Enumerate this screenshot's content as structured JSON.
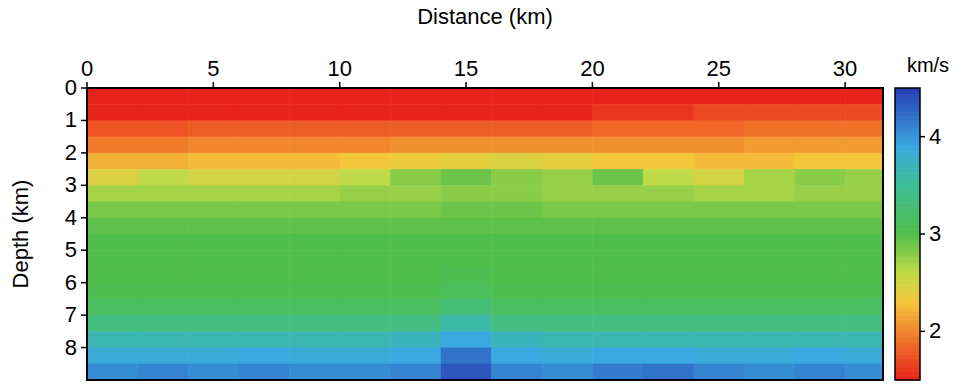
{
  "chart_data": {
    "type": "heatmap",
    "x_label": "Distance (km)",
    "y_label": "Depth (km)",
    "xlim": [
      0,
      31.5
    ],
    "ylim": [
      0,
      9
    ],
    "xticks": [
      0,
      5,
      10,
      15,
      20,
      25,
      30
    ],
    "yticks": [
      0,
      1,
      2,
      3,
      4,
      5,
      6,
      7,
      8
    ],
    "x": [
      1,
      3,
      5,
      7,
      9,
      11,
      13,
      15,
      17,
      19,
      21,
      23,
      25,
      27,
      29,
      31
    ],
    "y": [
      0.25,
      0.75,
      1.25,
      1.75,
      2.25,
      2.75,
      3.25,
      3.75,
      4.25,
      4.75,
      5.25,
      5.75,
      6.25,
      6.75,
      7.25,
      7.75,
      8.25,
      8.75
    ],
    "cells": [
      [
        1.5,
        1.5,
        1.5,
        1.5,
        1.5,
        1.5,
        1.5,
        1.5,
        1.5,
        1.5,
        1.5,
        1.5,
        1.5,
        1.5,
        1.5,
        1.5
      ],
      [
        1.5,
        1.5,
        1.5,
        1.5,
        1.5,
        1.5,
        1.5,
        1.5,
        1.5,
        1.5,
        1.6,
        1.6,
        1.7,
        1.7,
        1.7,
        1.7
      ],
      [
        1.75,
        1.75,
        1.8,
        1.8,
        1.8,
        1.8,
        1.8,
        1.8,
        1.8,
        1.8,
        1.85,
        1.85,
        1.85,
        1.9,
        1.9,
        1.9
      ],
      [
        1.95,
        1.95,
        2.0,
        2.0,
        2.0,
        2.0,
        2.05,
        2.05,
        2.05,
        2.05,
        2.05,
        2.05,
        2.05,
        2.1,
        2.1,
        2.1
      ],
      [
        2.2,
        2.2,
        2.25,
        2.25,
        2.25,
        2.3,
        2.35,
        2.4,
        2.45,
        2.4,
        2.3,
        2.3,
        2.25,
        2.25,
        2.3,
        2.3
      ],
      [
        2.45,
        2.6,
        2.5,
        2.5,
        2.5,
        2.6,
        2.8,
        2.9,
        2.8,
        2.75,
        2.9,
        2.6,
        2.5,
        2.7,
        2.8,
        2.75
      ],
      [
        2.7,
        2.7,
        2.7,
        2.7,
        2.7,
        2.75,
        2.75,
        2.8,
        2.8,
        2.75,
        2.75,
        2.75,
        2.7,
        2.7,
        2.75,
        2.75
      ],
      [
        2.85,
        2.85,
        2.85,
        2.85,
        2.85,
        2.85,
        2.85,
        2.9,
        2.9,
        2.85,
        2.85,
        2.85,
        2.85,
        2.85,
        2.85,
        2.85
      ],
      [
        2.95,
        2.95,
        2.95,
        2.95,
        2.95,
        2.95,
        2.95,
        2.95,
        2.95,
        2.95,
        2.95,
        2.95,
        2.95,
        2.95,
        2.95,
        2.95
      ],
      [
        3.0,
        3.0,
        3.0,
        3.0,
        3.0,
        3.0,
        3.0,
        3.0,
        3.0,
        3.0,
        3.0,
        3.0,
        3.0,
        3.0,
        3.0,
        3.0
      ],
      [
        3.0,
        3.0,
        3.0,
        3.0,
        3.0,
        3.0,
        3.0,
        3.0,
        3.0,
        3.0,
        3.0,
        3.0,
        3.0,
        3.0,
        3.0,
        3.0
      ],
      [
        3.0,
        3.0,
        3.0,
        3.0,
        3.0,
        3.0,
        3.0,
        3.05,
        3.0,
        3.0,
        3.0,
        3.0,
        3.0,
        3.0,
        3.0,
        3.0
      ],
      [
        3.05,
        3.05,
        3.05,
        3.05,
        3.05,
        3.05,
        3.05,
        3.1,
        3.05,
        3.05,
        3.05,
        3.05,
        3.05,
        3.05,
        3.05,
        3.05
      ],
      [
        3.15,
        3.15,
        3.15,
        3.15,
        3.15,
        3.15,
        3.15,
        3.3,
        3.15,
        3.15,
        3.15,
        3.15,
        3.15,
        3.15,
        3.15,
        3.15
      ],
      [
        3.35,
        3.35,
        3.35,
        3.35,
        3.35,
        3.35,
        3.35,
        3.6,
        3.35,
        3.35,
        3.35,
        3.35,
        3.35,
        3.35,
        3.35,
        3.35
      ],
      [
        3.65,
        3.65,
        3.65,
        3.65,
        3.65,
        3.65,
        3.7,
        3.9,
        3.7,
        3.65,
        3.65,
        3.65,
        3.65,
        3.65,
        3.65,
        3.65
      ],
      [
        3.85,
        3.85,
        3.85,
        3.9,
        3.85,
        3.85,
        3.9,
        4.2,
        3.9,
        3.85,
        3.9,
        3.9,
        3.85,
        3.85,
        3.9,
        3.85
      ],
      [
        4.05,
        4.1,
        4.05,
        4.1,
        4.05,
        4.05,
        4.1,
        4.35,
        4.1,
        4.05,
        4.15,
        4.2,
        4.1,
        4.05,
        4.1,
        4.05
      ]
    ],
    "colorbar_label": "km/s",
    "colorbar_range": [
      1.5,
      4.5
    ],
    "colorbar_ticks": [
      2,
      3,
      4
    ]
  }
}
